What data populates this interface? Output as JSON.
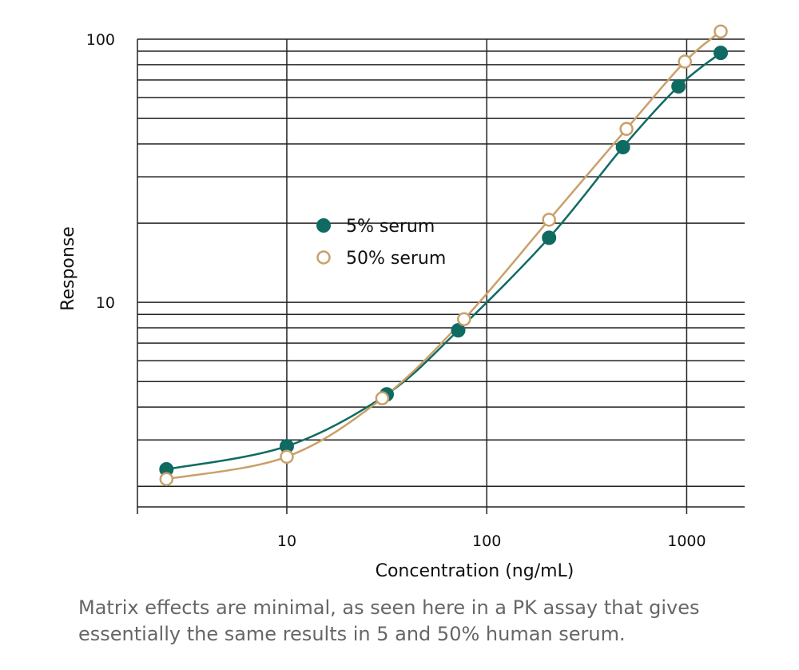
{
  "chart_data": {
    "type": "line",
    "x_label": "Concentration (ng/mL)",
    "y_label": "Response",
    "xscale": "log",
    "yscale": "log",
    "xlim": [
      1.79,
      1950
    ],
    "ylim": [
      1.67,
      100
    ],
    "xticks": [
      10,
      100,
      1000
    ],
    "yticks": [
      10,
      100
    ],
    "minor_yticks": [
      2,
      3,
      4,
      5,
      6,
      7,
      8,
      9,
      20,
      30,
      40,
      50,
      60,
      70,
      80,
      90
    ],
    "grid": true,
    "legend": "center",
    "series": [
      {
        "name": "5% serum",
        "color": "#0f6b62",
        "marker": "filled",
        "x": [
          2.5,
          10,
          31.6,
          72,
          205,
          480,
          910,
          1480
        ],
        "values": [
          2.32,
          2.84,
          4.47,
          7.83,
          17.6,
          38.9,
          66.2,
          88.7
        ]
      },
      {
        "name": "50% serum",
        "color": "#c9a06a",
        "marker": "hollow",
        "x": [
          2.5,
          10,
          30,
          77,
          205,
          500,
          980,
          1480
        ],
        "values": [
          2.13,
          2.59,
          4.32,
          8.63,
          20.6,
          45.6,
          82.2,
          107
        ]
      }
    ],
    "caption": "Matrix effects are minimal, as seen here in a PK assay that gives essentially the same results in 5 and 50% human serum."
  }
}
